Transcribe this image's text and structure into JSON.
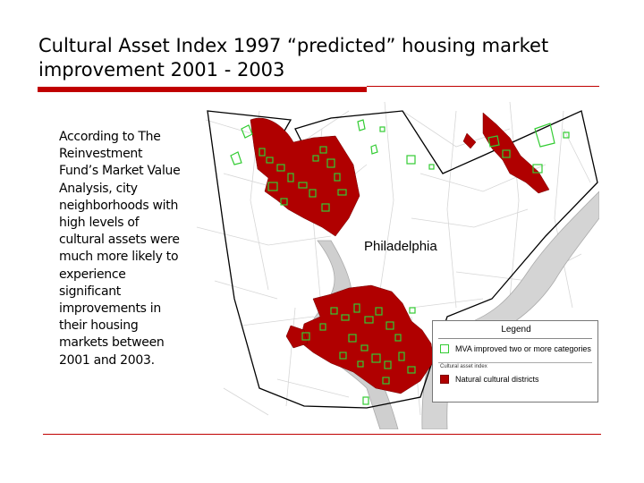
{
  "slide": {
    "title": "Cultural Asset Index 1997 “predicted” housing market improvement 2001 - 2003",
    "body": "According to The Reinvestment Fund’s Market Value Analysis, city neighborhoods with high levels of cultural assets were much more likely to experience significant improvements in their housing markets between 2001 and 2003."
  },
  "map": {
    "city_label": "Philadelphia",
    "legend": {
      "title": "Legend",
      "items": [
        {
          "label": "MVA improved two or more categories",
          "icon": "green-outline-square"
        },
        {
          "label": "Natural cultural districts",
          "icon": "red-filled-square"
        }
      ],
      "subheading": "Cultural asset index"
    },
    "colors": {
      "districts": "#b00000",
      "mva": "#33cc33",
      "river": "#c8c8c8",
      "boundary": "#000000",
      "accent": "#c00000"
    }
  }
}
